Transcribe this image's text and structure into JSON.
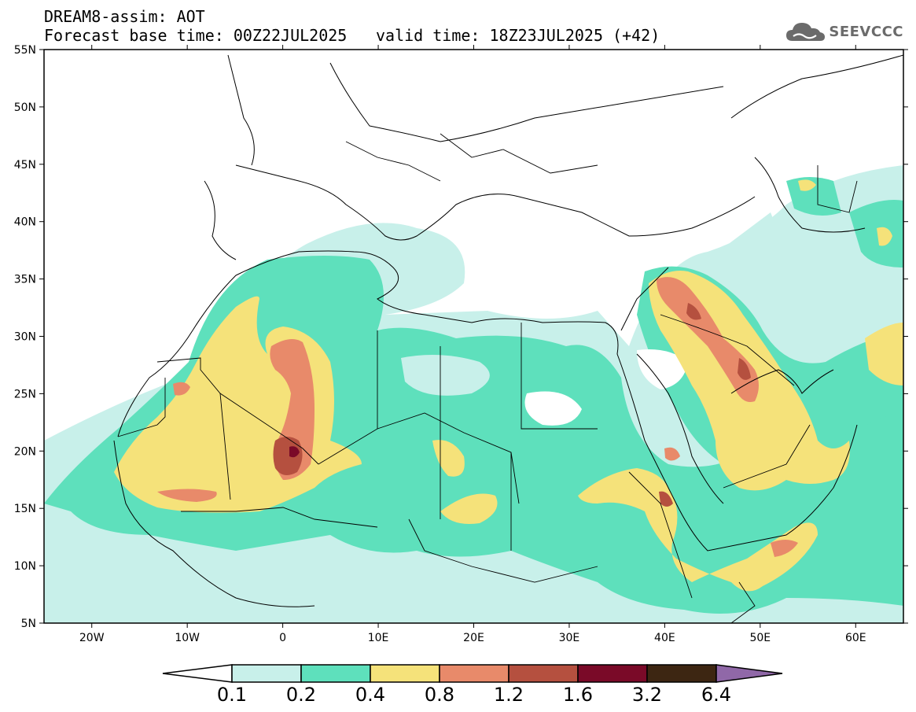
{
  "header": {
    "line1": "DREAM8-assim: AOT",
    "line2": "Forecast base time: 00Z22JUL2025",
    "line2b": "valid time: 18Z23JUL2025 (+42)",
    "logo": "SEEVCCC"
  },
  "map": {
    "lon_range": [
      -25,
      65
    ],
    "lat_range": [
      5,
      55
    ],
    "lon_ticks": [
      {
        "v": -20,
        "label": "20W"
      },
      {
        "v": -10,
        "label": "10W"
      },
      {
        "v": 0,
        "label": "0"
      },
      {
        "v": 10,
        "label": "10E"
      },
      {
        "v": 20,
        "label": "20E"
      },
      {
        "v": 30,
        "label": "30E"
      },
      {
        "v": 40,
        "label": "40E"
      },
      {
        "v": 50,
        "label": "50E"
      },
      {
        "v": 60,
        "label": "60E"
      }
    ],
    "lat_ticks": [
      {
        "v": 55,
        "label": "55N"
      },
      {
        "v": 50,
        "label": "50N"
      },
      {
        "v": 45,
        "label": "45N"
      },
      {
        "v": 40,
        "label": "40N"
      },
      {
        "v": 35,
        "label": "35N"
      },
      {
        "v": 30,
        "label": "30N"
      },
      {
        "v": 25,
        "label": "25N"
      },
      {
        "v": 20,
        "label": "20N"
      },
      {
        "v": 15,
        "label": "15N"
      },
      {
        "v": 10,
        "label": "10N"
      },
      {
        "v": 5,
        "label": "5N"
      }
    ]
  },
  "colorbar": {
    "colors": [
      "#c8f0ea",
      "#5ee0bc",
      "#f5e27a",
      "#e88a6a",
      "#b5503f",
      "#7a0a28",
      "#3d2612"
    ],
    "under_color": "#ffffff",
    "over_color": "#9068a8",
    "labels": [
      "0.1",
      "0.2",
      "0.4",
      "0.8",
      "1.2",
      "1.6",
      "3.2",
      "6.4"
    ]
  }
}
